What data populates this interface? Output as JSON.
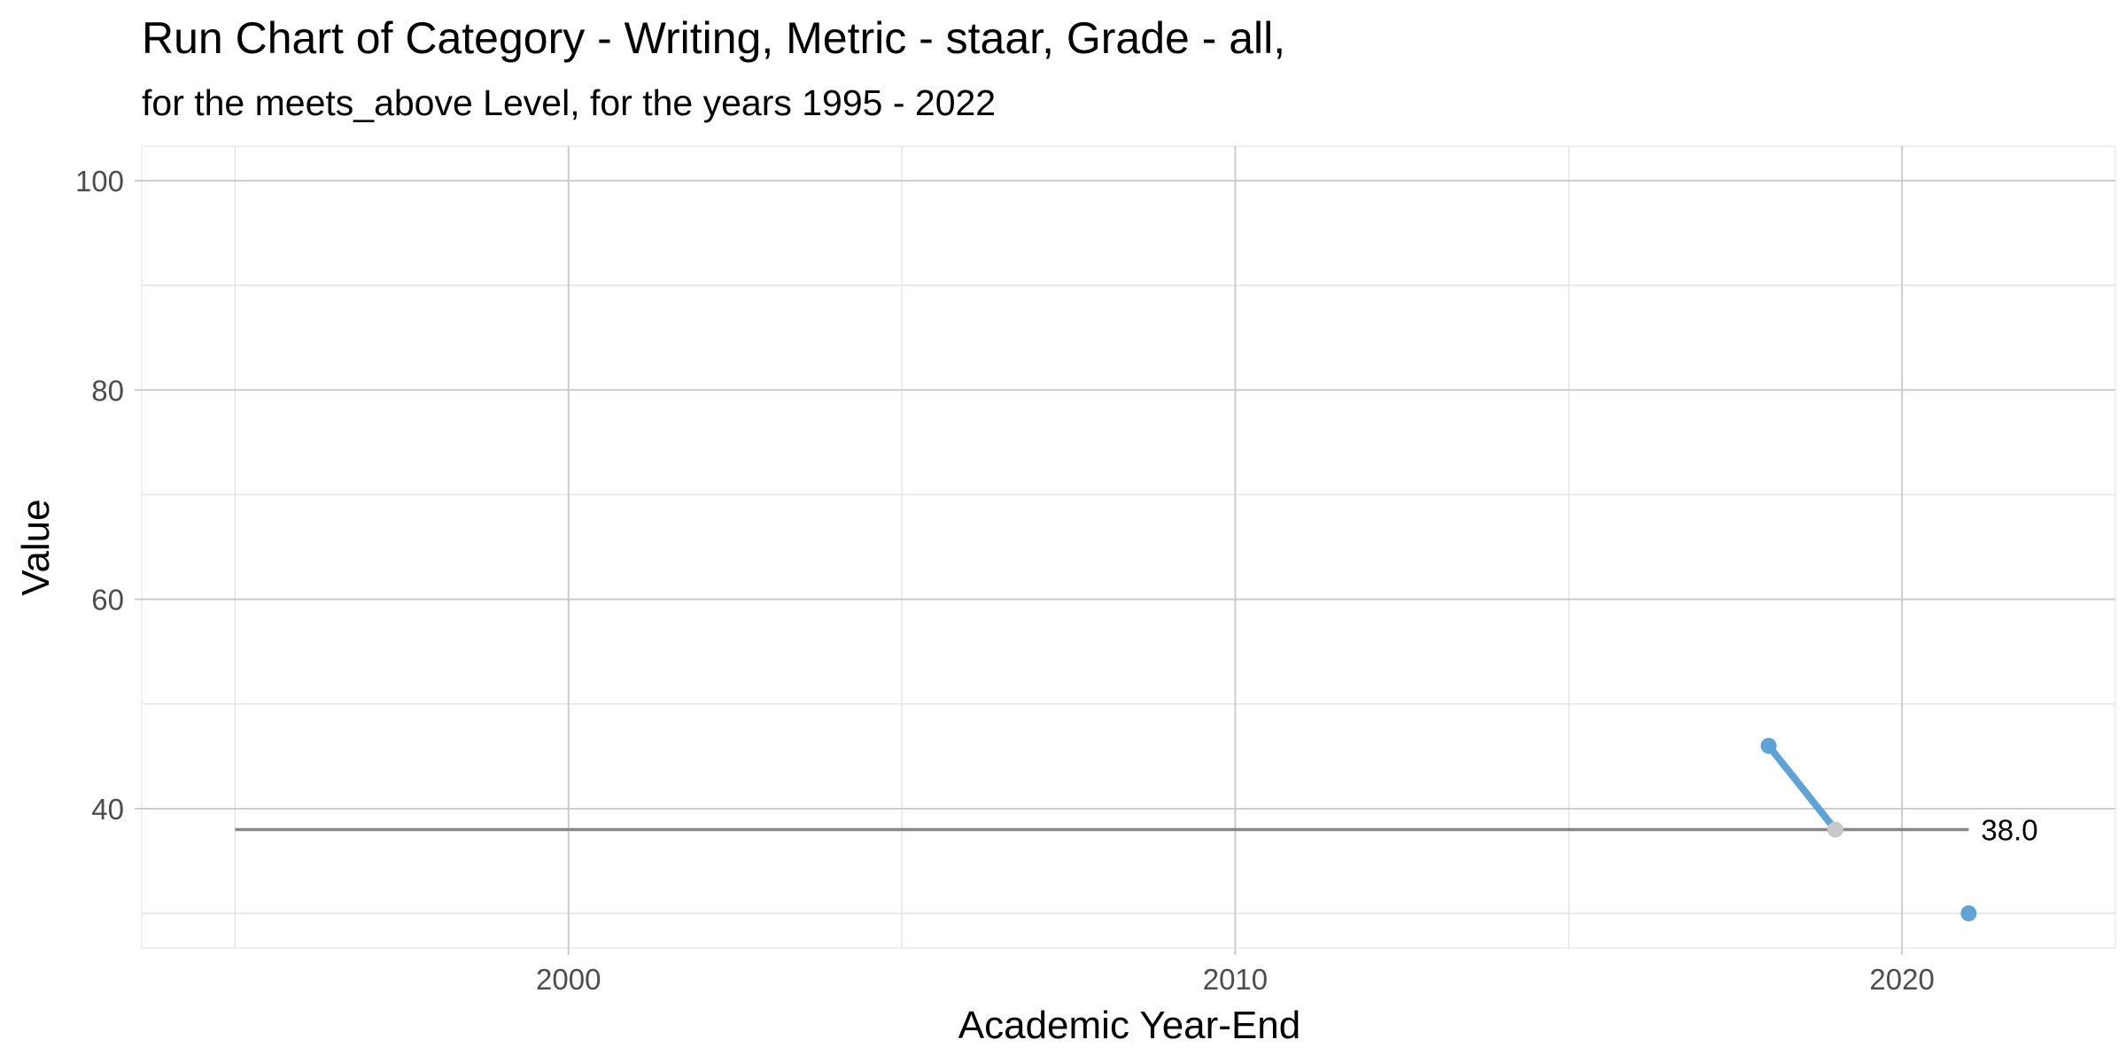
{
  "chart_data": {
    "type": "line",
    "title": "Run Chart of Category - Writing, Metric - staar, Grade - all,",
    "subtitle": "for the meets_above Level, for the years 1995 - 2022",
    "xlabel": "Academic Year-End",
    "ylabel": "Value",
    "xlim": [
      1993.6,
      2023.2
    ],
    "ylim": [
      26.7,
      103.3
    ],
    "x_ticks": [
      2000,
      2010,
      2020
    ],
    "x_tick_labels": [
      "2000",
      "2010",
      "2020"
    ],
    "x_minor_ticks": [
      1995,
      2005,
      2015
    ],
    "y_ticks": [
      40,
      60,
      80,
      100
    ],
    "y_tick_labels": [
      "40",
      "60",
      "80",
      "100"
    ],
    "y_minor_ticks": [
      30,
      50,
      70,
      90
    ],
    "grid": true,
    "series": [
      {
        "points": [
          {
            "x": 2018,
            "y": 46
          },
          {
            "x": 2019,
            "y": 38
          },
          {
            "x": 2021,
            "y": 30
          }
        ],
        "segments": [
          [
            0,
            1
          ]
        ],
        "color": "#5fa2d6",
        "highlight_index": 1,
        "highlight_color": "#c8c8c8"
      }
    ],
    "reference_line": {
      "y": 38,
      "x_start": 1995,
      "x_end": 2021,
      "color": "#888888",
      "label": "38.0"
    }
  }
}
